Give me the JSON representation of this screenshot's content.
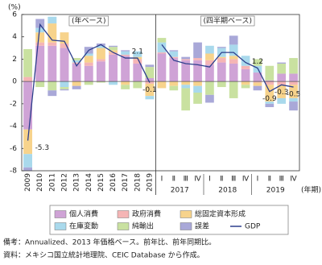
{
  "chart_data": {
    "type": "bar",
    "stacked": true,
    "y_label": "(%)",
    "x_unit": "(年期)",
    "panel_labels": [
      "(年ベース)",
      "(四半期ベース)"
    ],
    "categories": [
      "2009",
      "2010",
      "2011",
      "2012",
      "2013",
      "2014",
      "2015",
      "2016",
      "2017",
      "2018",
      "2019",
      "Ⅰ",
      "Ⅱ",
      "Ⅲ",
      "Ⅳ",
      "Ⅰ",
      "Ⅱ",
      "Ⅲ",
      "Ⅳ",
      "Ⅰ",
      "Ⅱ",
      "Ⅲ",
      "Ⅳ"
    ],
    "quarter_years": [
      "2017",
      "2018",
      "2019"
    ],
    "ylim": [
      -8,
      6
    ],
    "yticks": [
      -8,
      -6,
      -4,
      -2,
      0,
      2,
      4,
      6
    ],
    "series": [
      {
        "name": "個人消費",
        "color": "#cfa3d6",
        "values": [
          -4.3,
          3.2,
          3.2,
          3.0,
          1.6,
          1.4,
          1.8,
          2.4,
          2.3,
          1.6,
          0.3,
          2.5,
          2.1,
          1.9,
          1.9,
          1.5,
          1.7,
          1.6,
          1.1,
          0.8,
          0.1,
          0.7,
          0.7
        ]
      },
      {
        "name": "政府消費",
        "color": "#f5b5b5",
        "values": [
          0.4,
          0.3,
          0.3,
          0.4,
          0.1,
          0.3,
          0.2,
          0.2,
          0.1,
          0.4,
          -0.2,
          0.1,
          0.1,
          0.1,
          0.2,
          0.4,
          0.4,
          0.4,
          0.3,
          -0.1,
          -0.3,
          -0.3,
          -0.3
        ]
      },
      {
        "name": "総固定資本形成",
        "color": "#f7d38c",
        "values": [
          -2.2,
          0.9,
          1.7,
          1.0,
          -0.4,
          0.6,
          1.0,
          0.2,
          -0.3,
          0.2,
          -1.1,
          -0.6,
          -0.4,
          -0.3,
          -0.4,
          0.6,
          0.1,
          0.3,
          -0.3,
          -0.3,
          -1.5,
          -1.2,
          -1.2
        ]
      },
      {
        "name": "在庫変動",
        "color": "#a9d9ec",
        "values": [
          -1.2,
          0.4,
          0.6,
          -0.5,
          0.2,
          0.2,
          0.2,
          -0.3,
          0.3,
          0.5,
          -0.3,
          0.9,
          0.5,
          -0.3,
          -0.6,
          0.7,
          0.8,
          1.0,
          0.9,
          0.6,
          -0.2,
          -0.5,
          -0.3
        ]
      },
      {
        "name": "純輸出",
        "color": "#c9e1a0",
        "values": [
          2.5,
          -0.5,
          -0.8,
          -0.2,
          0.2,
          -0.3,
          -0.1,
          0.3,
          -0.4,
          -0.6,
          1.0,
          0.4,
          -0.4,
          -2.0,
          -1.0,
          -1.2,
          -0.5,
          -1.5,
          -0.3,
          0.6,
          1.3,
          0.9,
          1.4
        ]
      },
      {
        "name": "誤差",
        "color": "#a9a8d8",
        "values": [
          -0.3,
          0.8,
          -0.5,
          -0.1,
          -0.3,
          0.6,
          0.2,
          0.1,
          0.1,
          0.0,
          0.2,
          0.0,
          0.1,
          0.2,
          1.4,
          -0.7,
          0.1,
          0.8,
          0.0,
          -0.4,
          -0.3,
          0.1,
          -0.8
        ]
      },
      {
        "name": "GDP",
        "type": "line",
        "color": "#2c3e8c",
        "values": [
          -5.3,
          5.1,
          3.7,
          3.6,
          1.4,
          2.8,
          3.3,
          2.6,
          2.1,
          2.1,
          -0.1,
          3.3,
          1.9,
          1.6,
          1.5,
          1.3,
          2.6,
          2.6,
          1.7,
          1.2,
          -0.9,
          -0.3,
          -0.5
        ],
        "value_labels": [
          "-5.3",
          null,
          null,
          null,
          null,
          null,
          null,
          null,
          null,
          "2.1",
          "-0.1",
          null,
          null,
          null,
          null,
          null,
          null,
          null,
          null,
          "1.2",
          "-0.9",
          "-0.3",
          "-0.5"
        ]
      }
    ],
    "notes": [
      "備考：Annualized、2013 年価格ベース。前年比、前年同期比。",
      "資料：メキシコ国立統計地理院、CEIC Database から作成。"
    ]
  }
}
